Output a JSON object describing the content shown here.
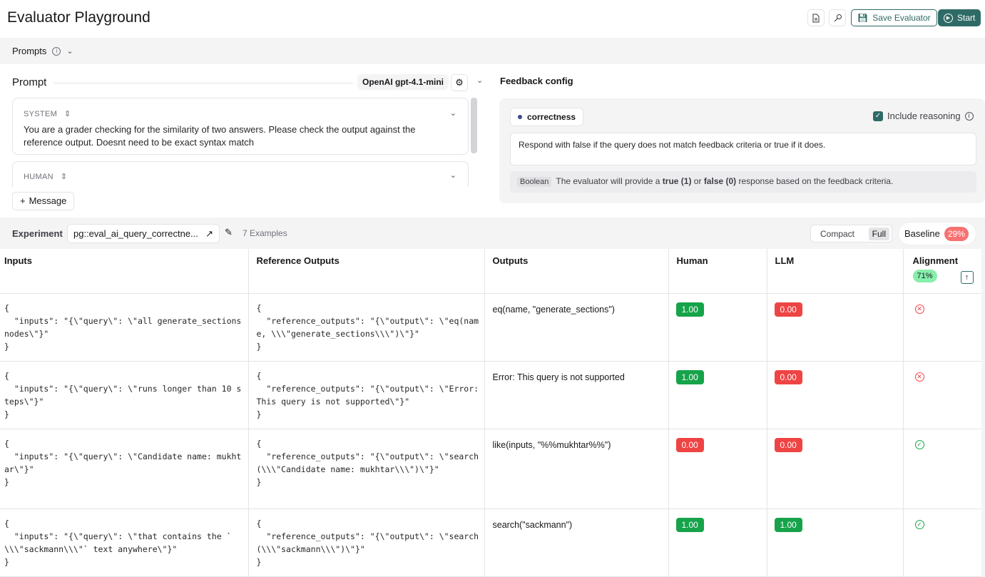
{
  "header": {
    "title": "Evaluator Playground",
    "save_label": "Save Evaluator",
    "start_label": "Start"
  },
  "prompts_bar": {
    "label": "Prompts"
  },
  "prompt": {
    "title": "Prompt",
    "model": "OpenAI gpt-4.1-mini",
    "add_message": "Message",
    "messages": [
      {
        "role": "SYSTEM",
        "text": "You are a grader checking for the similarity of two answers. Please check the output against the reference output. Doesnt need to be exact syntax match"
      },
      {
        "role": "HUMAN",
        "text": ""
      }
    ]
  },
  "feedback": {
    "title": "Feedback config",
    "key": "correctness",
    "include_reasoning": "Include reasoning",
    "include_reasoning_checked": true,
    "criteria": "Respond with false if the query does not match feedback criteria or true if it does.",
    "type_badge": "Boolean",
    "desc_pre": "The evaluator will provide a ",
    "desc_true": "true (1)",
    "desc_mid": " or ",
    "desc_false": "false (0)",
    "desc_post": " response based on the feedback criteria."
  },
  "experiment": {
    "label": "Experiment",
    "name": "pg::eval_ai_query_correctne...",
    "examples": "7 Examples",
    "compact": "Compact",
    "full": "Full",
    "baseline": "Baseline",
    "baseline_pct": "29%"
  },
  "table": {
    "columns": [
      "Inputs",
      "Reference Outputs",
      "Outputs",
      "Human",
      "LLM",
      "Alignment"
    ],
    "alignment_pct": "71%",
    "rows": [
      {
        "input": "{\n  \"inputs\": \"{\\\"query\\\": \\\"all generate_sections nodes\\\"}\"\n}",
        "reference": "{\n  \"reference_outputs\": \"{\\\"output\\\": \\\"eq(name, \\\\\\\"generate_sections\\\\\\\")\\\"}\"\n}",
        "output": "eq(name, \"generate_sections\")",
        "human": "1.00",
        "llm": "0.00",
        "aligned": false
      },
      {
        "input": "{\n  \"inputs\": \"{\\\"query\\\": \\\"runs longer than 10 steps\\\"}\"\n}",
        "reference": "{\n  \"reference_outputs\": \"{\\\"output\\\": \\\"Error: This query is not supported\\\"}\"\n}",
        "output": "Error: This query is not supported",
        "human": "1.00",
        "llm": "0.00",
        "aligned": false
      },
      {
        "input": "{\n  \"inputs\": \"{\\\"query\\\": \\\"Candidate name: mukhtar\\\"}\"\n}",
        "reference": "{\n  \"reference_outputs\": \"{\\\"output\\\": \\\"search(\\\\\\\"Candidate name: mukhtar\\\\\\\")\\\"}\"\n}",
        "output": "like(inputs, \"%%mukhtar%%\")",
        "human": "0.00",
        "llm": "0.00",
        "aligned": true
      },
      {
        "input": "{\n  \"inputs\": \"{\\\"query\\\": \\\"that contains the `\\\\\\\"sackmann\\\\\\\"` text anywhere\\\"}\"\n}",
        "reference": "{\n  \"reference_outputs\": \"{\\\"output\\\": \\\"search(\\\\\\\"sackmann\\\\\\\")\\\"}\"\n}",
        "output": "search(\"sackmann\")",
        "human": "1.00",
        "llm": "1.00",
        "aligned": true
      }
    ]
  },
  "colors": {
    "accent": "#2f6b66",
    "pass": "#16a34a",
    "fail": "#ef4444",
    "baseline": "#f87171",
    "alignment": "#86efac"
  }
}
